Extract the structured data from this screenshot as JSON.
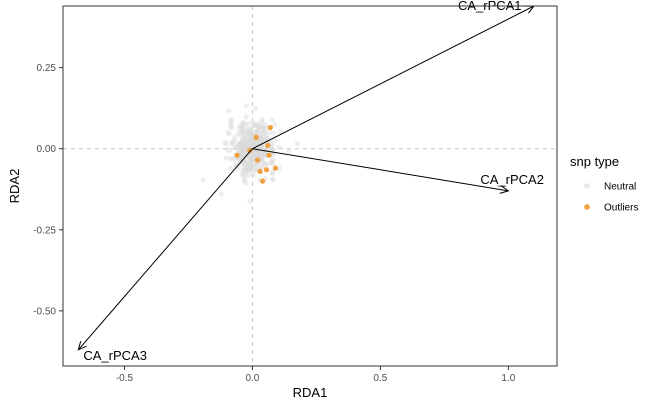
{
  "chart_data": {
    "type": "scatter",
    "xlabel": "RDA1",
    "ylabel": "RDA2",
    "xlim": [
      -0.74,
      1.19
    ],
    "ylim": [
      -0.67,
      0.44
    ],
    "x_ticks": [
      {
        "value": -0.5,
        "label": "-0.5"
      },
      {
        "value": 0.0,
        "label": "0.0"
      },
      {
        "value": 0.5,
        "label": "0.5"
      },
      {
        "value": 1.0,
        "label": "1.0"
      }
    ],
    "y_ticks": [
      {
        "value": 0.25,
        "label": "0.25"
      },
      {
        "value": 0.0,
        "label": "0.00"
      },
      {
        "value": -0.25,
        "label": "-0.25"
      },
      {
        "value": -0.5,
        "label": "-0.50"
      }
    ],
    "reference_lines": {
      "x": 0,
      "y": 0
    },
    "legend": {
      "title": "snp type",
      "placement": "right",
      "entries": [
        {
          "label": "Neutral",
          "color": "#d9d9d9"
        },
        {
          "label": "Outliers",
          "color": "#f0a040"
        }
      ]
    },
    "arrows": [
      {
        "label": "CA_rPCA1",
        "x": 1.1,
        "y": 0.44
      },
      {
        "label": "CA_rPCA2",
        "x": 1.0,
        "y": -0.13
      },
      {
        "label": "CA_rPCA3",
        "x": -0.68,
        "y": -0.62
      }
    ],
    "outlier_points": [
      {
        "x": 0.07,
        "y": 0.065
      },
      {
        "x": 0.015,
        "y": 0.035
      },
      {
        "x": 0.06,
        "y": 0.01
      },
      {
        "x": -0.01,
        "y": -0.005
      },
      {
        "x": -0.06,
        "y": -0.02
      },
      {
        "x": 0.02,
        "y": -0.035
      },
      {
        "x": 0.065,
        "y": -0.02
      },
      {
        "x": 0.055,
        "y": -0.065
      },
      {
        "x": 0.09,
        "y": -0.06
      },
      {
        "x": 0.03,
        "y": -0.07
      },
      {
        "x": 0.04,
        "y": -0.1
      }
    ],
    "neutral_cloud": {
      "count": 420,
      "center_x": 0.0,
      "center_y": 0.0,
      "spread_x": 0.045,
      "spread_y": 0.04
    }
  }
}
